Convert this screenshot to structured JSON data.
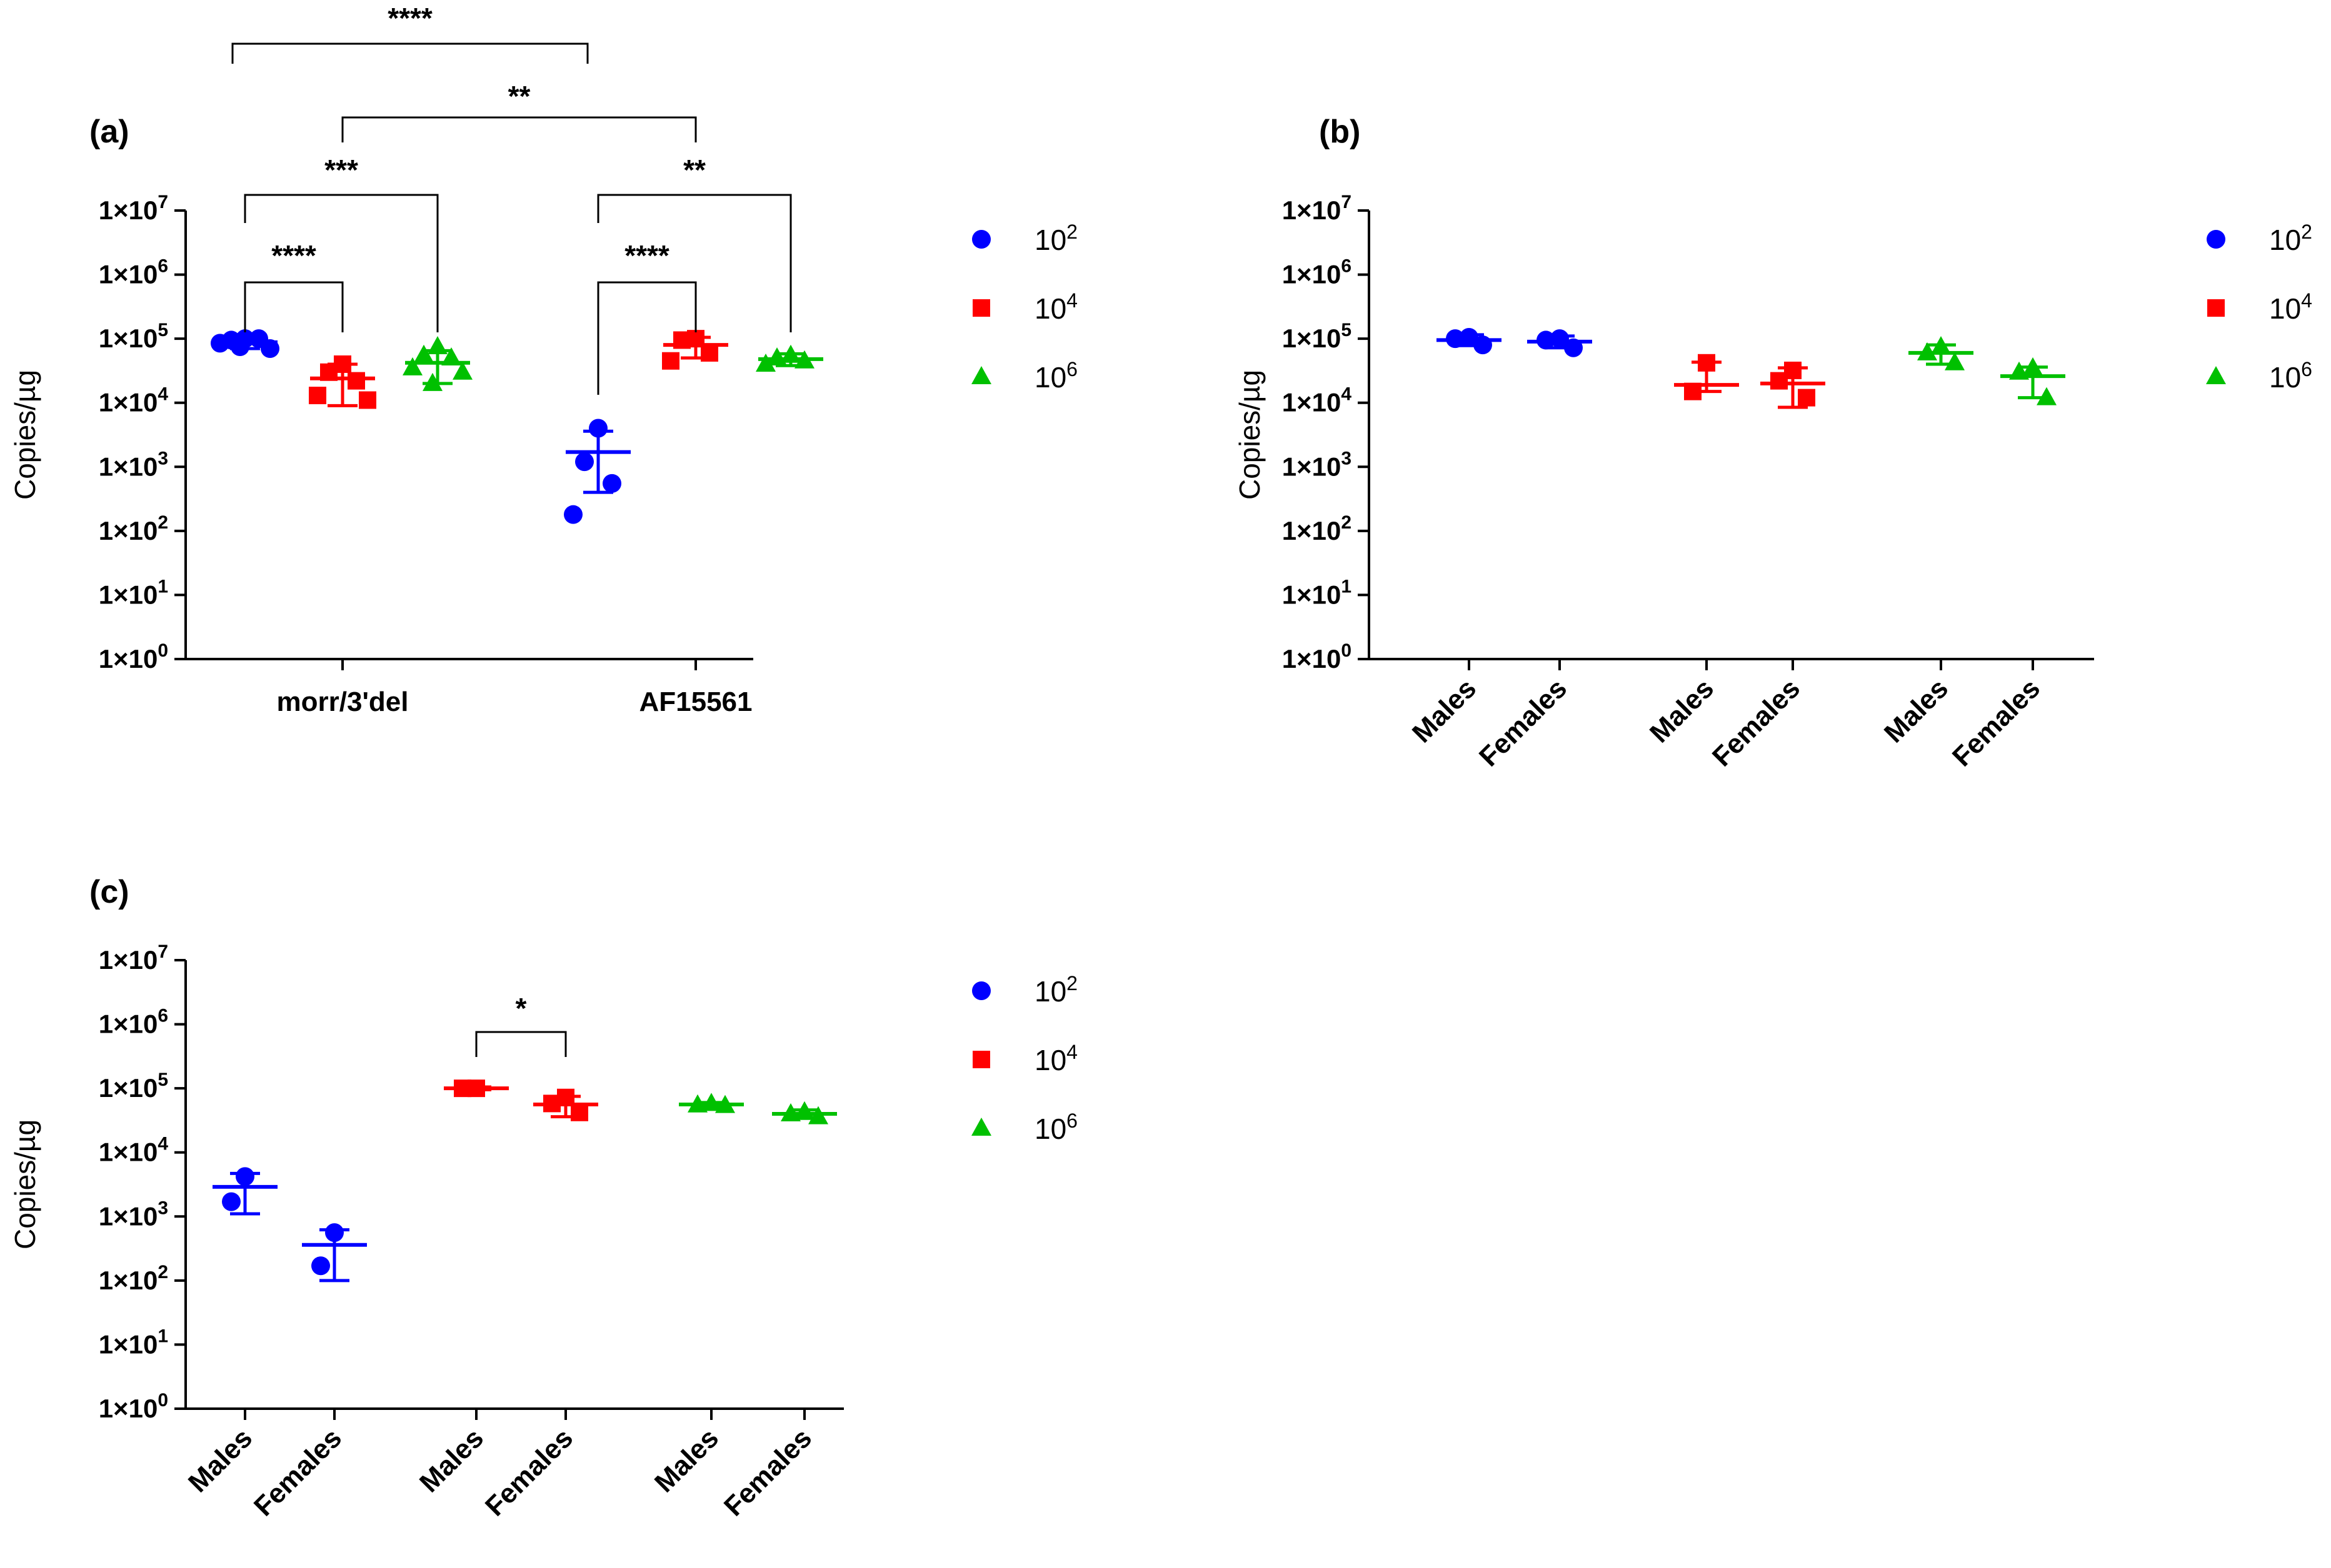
{
  "figure": {
    "yscale": "log10",
    "ylim": [
      1,
      10000000
    ],
    "y_tick_labels": [
      "1×10",
      "1×10",
      "1×10",
      "1×10",
      "1×10",
      "1×10",
      "1×10",
      "1×10"
    ],
    "y_tick_exponents": [
      "0",
      "1",
      "2",
      "3",
      "4",
      "5",
      "6",
      "7"
    ],
    "ylabel": "Copies/µg",
    "legend": [
      {
        "base": "10",
        "exp": "2",
        "color": "#0000ff",
        "marker": "circle"
      },
      {
        "base": "10",
        "exp": "4",
        "color": "#ff0000",
        "marker": "square"
      },
      {
        "base": "10",
        "exp": "6",
        "color": "#00c000",
        "marker": "triangle"
      }
    ]
  },
  "chart_data": [
    {
      "panel": "(a)",
      "type": "scatter",
      "title": "(a)",
      "ylabel": "Copies/µg",
      "xlabel": "",
      "yscale": "log",
      "ylim": [
        1,
        10000000
      ],
      "categories": [
        "morr/3'del",
        "AF15561"
      ],
      "series": [
        {
          "name": "10^2",
          "color": "#0000ff",
          "marker": "circle",
          "groups": [
            {
              "category": "morr/3'del",
              "mean": 88000,
              "sd_low": 70000,
              "sd_high": 110000,
              "points": [
                100000,
                95000,
                100000,
                85000,
                70000,
                75000
              ]
            },
            {
              "category": "AF15561",
              "mean": 1700,
              "sd_low": 400,
              "sd_high": 3600,
              "points": [
                4000,
                1200,
                550,
                180
              ]
            }
          ]
        },
        {
          "name": "10^4",
          "color": "#ff0000",
          "marker": "square",
          "groups": [
            {
              "category": "morr/3'del",
              "mean": 24000,
              "sd_low": 9000,
              "sd_high": 40000,
              "points": [
                40000,
                30000,
                22000,
                13000,
                11000
              ]
            },
            {
              "category": "AF15561",
              "mean": 80000,
              "sd_low": 50000,
              "sd_high": 105000,
              "points": [
                100000,
                95000,
                60000,
                45000
              ]
            }
          ]
        },
        {
          "name": "10^6",
          "color": "#00c000",
          "marker": "triangle",
          "groups": [
            {
              "category": "morr/3'del",
              "mean": 42000,
              "sd_low": 20000,
              "sd_high": 65000,
              "points": [
                75000,
                55000,
                50000,
                35000,
                30000,
                20000
              ]
            },
            {
              "category": "AF15561",
              "mean": 48000,
              "sd_low": 38000,
              "sd_high": 58000,
              "points": [
                55000,
                50000,
                45000,
                40000
              ]
            }
          ]
        }
      ],
      "annotations": [
        {
          "text": "****",
          "from": "morr/3'del 10^2",
          "to": "morr/3'del 10^4"
        },
        {
          "text": "***",
          "from": "morr/3'del 10^2",
          "to": "morr/3'del 10^6"
        },
        {
          "text": "****",
          "from": "AF15561 10^2",
          "to": "AF15561 10^4"
        },
        {
          "text": "**",
          "from": "AF15561 10^2",
          "to": "AF15561 10^6"
        },
        {
          "text": "**",
          "from": "morr/3'del 10^4",
          "to": "AF15561 10^4"
        },
        {
          "text": "****",
          "from": "morr/3'del 10^2",
          "to": "AF15561 10^2"
        }
      ]
    },
    {
      "panel": "(b)",
      "type": "scatter",
      "title": "(b)",
      "ylabel": "Copies/µg",
      "xlabel": "",
      "yscale": "log",
      "ylim": [
        1,
        10000000
      ],
      "categories": [
        "Males",
        "Females",
        "Males",
        "Females",
        "Males",
        "Females"
      ],
      "series": [
        {
          "name": "10^2",
          "color": "#0000ff",
          "marker": "circle",
          "groups": [
            {
              "category": "Males",
              "mean": 95000,
              "sd_low": 78000,
              "sd_high": 115000,
              "points": [
                105000,
                100000,
                80000
              ]
            },
            {
              "category": "Females",
              "mean": 90000,
              "sd_low": 72000,
              "sd_high": 110000,
              "points": [
                100000,
                95000,
                72000
              ]
            }
          ]
        },
        {
          "name": "10^4",
          "color": "#ff0000",
          "marker": "square",
          "groups": [
            {
              "category": "Males",
              "mean": 19000,
              "sd_low": 15000,
              "sd_high": 43000,
              "points": [
                42000,
                15000
              ]
            },
            {
              "category": "Females",
              "mean": 20000,
              "sd_low": 8500,
              "sd_high": 35000,
              "points": [
                32000,
                22000,
                12000
              ]
            }
          ]
        },
        {
          "name": "10^6",
          "color": "#00c000",
          "marker": "triangle",
          "groups": [
            {
              "category": "Males",
              "mean": 60000,
              "sd_low": 40000,
              "sd_high": 80000,
              "points": [
                75000,
                60000,
                42000
              ]
            },
            {
              "category": "Females",
              "mean": 26000,
              "sd_low": 12000,
              "sd_high": 36000,
              "points": [
                35000,
                30000,
                12000
              ]
            }
          ]
        }
      ],
      "annotations": []
    },
    {
      "panel": "(c)",
      "type": "scatter",
      "title": "(c)",
      "ylabel": "Copies/µg",
      "xlabel": "",
      "yscale": "log",
      "ylim": [
        1,
        10000000
      ],
      "categories": [
        "Males",
        "Females",
        "Males",
        "Females",
        "Males",
        "Females"
      ],
      "series": [
        {
          "name": "10^2",
          "color": "#0000ff",
          "marker": "circle",
          "groups": [
            {
              "category": "Males",
              "mean": 2900,
              "sd_low": 1100,
              "sd_high": 4700,
              "points": [
                4200,
                1700
              ]
            },
            {
              "category": "Females",
              "mean": 360,
              "sd_low": 100,
              "sd_high": 620,
              "points": [
                560,
                170
              ]
            }
          ]
        },
        {
          "name": "10^4",
          "color": "#ff0000",
          "marker": "square",
          "groups": [
            {
              "category": "Males",
              "mean": 100000,
              "sd_low": 95000,
              "sd_high": 105000,
              "points": [
                100000,
                100000
              ]
            },
            {
              "category": "Females",
              "mean": 56000,
              "sd_low": 36000,
              "sd_high": 75000,
              "points": [
                72000,
                58000,
                42000
              ]
            }
          ]
        },
        {
          "name": "10^6",
          "color": "#00c000",
          "marker": "triangle",
          "groups": [
            {
              "category": "Males",
              "mean": 56000,
              "sd_low": 52000,
              "sd_high": 60000,
              "points": [
                58000,
                55000,
                54000
              ]
            },
            {
              "category": "Females",
              "mean": 40000,
              "sd_low": 34000,
              "sd_high": 46000,
              "points": [
                43000,
                40000,
                36000
              ]
            }
          ]
        }
      ],
      "annotations": [
        {
          "text": "*",
          "from": "10^4 Males",
          "to": "10^4 Females"
        }
      ]
    }
  ]
}
